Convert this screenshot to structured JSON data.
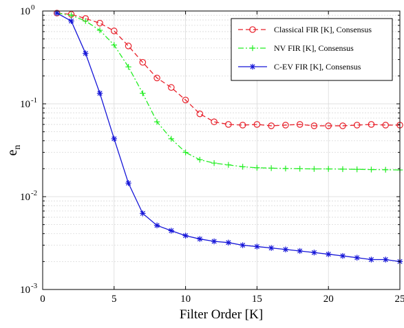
{
  "chart_data": {
    "type": "line",
    "xlabel": "Filter Order [K]",
    "ylabel": {
      "base": "e",
      "sub": "n"
    },
    "xlim": [
      0,
      25
    ],
    "ylim": [
      0.001,
      1
    ],
    "yscale": "log",
    "grid": true,
    "legend_position": "top-right",
    "x_ticks": [
      {
        "value": 0,
        "label": "0"
      },
      {
        "value": 5,
        "label": "5"
      },
      {
        "value": 10,
        "label": "10"
      },
      {
        "value": 15,
        "label": "15"
      },
      {
        "value": 20,
        "label": "20"
      },
      {
        "value": 25,
        "label": "25"
      }
    ],
    "y_ticks": [
      {
        "value": 1,
        "base": "10",
        "exp": "0"
      },
      {
        "value": 0.1,
        "base": "10",
        "exp": "-1"
      },
      {
        "value": 0.01,
        "base": "10",
        "exp": "-2"
      },
      {
        "value": 0.001,
        "base": "10",
        "exp": "-3"
      }
    ],
    "x": [
      1,
      2,
      3,
      4,
      5,
      6,
      7,
      8,
      9,
      10,
      11,
      12,
      13,
      14,
      15,
      16,
      17,
      18,
      19,
      20,
      21,
      22,
      23,
      24,
      25
    ],
    "series": [
      {
        "name": "Classical FIR [K], Consensus",
        "color": "#e8202a",
        "line_style": "dashed",
        "marker": "circle",
        "values": [
          0.95,
          0.92,
          0.83,
          0.74,
          0.61,
          0.42,
          0.28,
          0.19,
          0.15,
          0.11,
          0.078,
          0.064,
          0.06,
          0.059,
          0.06,
          0.058,
          0.059,
          0.06,
          0.058,
          0.058,
          0.058,
          0.059,
          0.06,
          0.059,
          0.059
        ]
      },
      {
        "name": "NV FIR [K], Consensus",
        "color": "#22ee22",
        "line_style": "dashdot",
        "marker": "plus",
        "values": [
          0.95,
          0.9,
          0.78,
          0.62,
          0.43,
          0.25,
          0.13,
          0.064,
          0.042,
          0.03,
          0.025,
          0.023,
          0.022,
          0.021,
          0.0205,
          0.0203,
          0.0201,
          0.02,
          0.0199,
          0.0199,
          0.0198,
          0.0197,
          0.0196,
          0.0195,
          0.0194
        ]
      },
      {
        "name": "C-EV FIR [K], Consensus",
        "color": "#1515d8",
        "line_style": "solid",
        "marker": "asterisk",
        "values": [
          0.95,
          0.78,
          0.35,
          0.13,
          0.042,
          0.014,
          0.0066,
          0.0049,
          0.0043,
          0.0038,
          0.0035,
          0.0033,
          0.0032,
          0.003,
          0.0029,
          0.0028,
          0.0027,
          0.0026,
          0.0025,
          0.0024,
          0.0023,
          0.0022,
          0.0021,
          0.0021,
          0.002
        ]
      }
    ]
  }
}
